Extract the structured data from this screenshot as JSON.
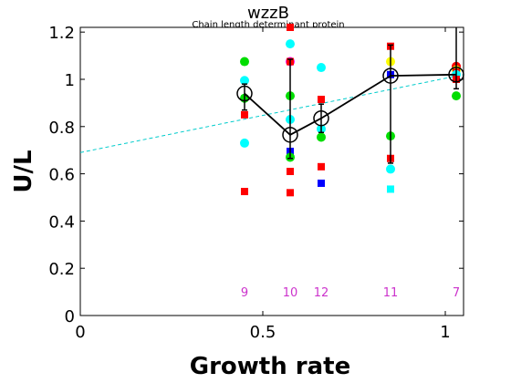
{
  "chart_data": {
    "type": "scatter",
    "title": "wzzB",
    "subtitle": "Chain length determinant protein",
    "xlabel": "Growth rate",
    "ylabel": "U/L",
    "xlim": [
      0,
      1.05
    ],
    "ylim": [
      0,
      1.22
    ],
    "xticks": [
      0,
      0.5,
      1
    ],
    "xtick_labels": [
      "0",
      "0.5",
      "1"
    ],
    "yticks": [
      0,
      0.2,
      0.4,
      0.6,
      0.8,
      1.0,
      1.2
    ],
    "ytick_labels": [
      "0",
      "0.2",
      "0.4",
      "0.6",
      "0.8",
      "1",
      "1.2"
    ],
    "grid": false,
    "colors": {
      "red": "#ff0000",
      "green": "#00dd00",
      "cyan": "#00ffff",
      "blue": "#0000ff",
      "magenta": "#ff00ff",
      "yellow": "#ffff00",
      "black": "#000000",
      "count_label": "#cc33cc",
      "fit_line": "#00cccc"
    },
    "scatter_points": [
      {
        "x": 0.45,
        "y": 1.075,
        "color": "green",
        "marker": "circle"
      },
      {
        "x": 0.45,
        "y": 0.995,
        "color": "cyan",
        "marker": "circle"
      },
      {
        "x": 0.45,
        "y": 0.92,
        "color": "green",
        "marker": "circle"
      },
      {
        "x": 0.45,
        "y": 0.85,
        "color": "red",
        "marker": "square"
      },
      {
        "x": 0.45,
        "y": 0.73,
        "color": "cyan",
        "marker": "circle"
      },
      {
        "x": 0.45,
        "y": 0.525,
        "color": "red",
        "marker": "square"
      },
      {
        "x": 0.575,
        "y": 1.22,
        "color": "red",
        "marker": "square"
      },
      {
        "x": 0.575,
        "y": 1.15,
        "color": "cyan",
        "marker": "circle"
      },
      {
        "x": 0.575,
        "y": 1.075,
        "color": "magenta",
        "marker": "circle"
      },
      {
        "x": 0.575,
        "y": 1.075,
        "color": "red",
        "marker": "square"
      },
      {
        "x": 0.575,
        "y": 0.93,
        "color": "green",
        "marker": "circle"
      },
      {
        "x": 0.575,
        "y": 0.83,
        "color": "cyan",
        "marker": "circle"
      },
      {
        "x": 0.575,
        "y": 0.695,
        "color": "blue",
        "marker": "square"
      },
      {
        "x": 0.575,
        "y": 0.67,
        "color": "green",
        "marker": "circle"
      },
      {
        "x": 0.575,
        "y": 0.61,
        "color": "red",
        "marker": "square"
      },
      {
        "x": 0.575,
        "y": 0.52,
        "color": "red",
        "marker": "square"
      },
      {
        "x": 0.66,
        "y": 1.05,
        "color": "cyan",
        "marker": "circle"
      },
      {
        "x": 0.66,
        "y": 0.915,
        "color": "red",
        "marker": "square"
      },
      {
        "x": 0.66,
        "y": 0.79,
        "color": "cyan",
        "marker": "circle"
      },
      {
        "x": 0.66,
        "y": 0.755,
        "color": "green",
        "marker": "circle"
      },
      {
        "x": 0.66,
        "y": 0.63,
        "color": "red",
        "marker": "square"
      },
      {
        "x": 0.66,
        "y": 0.56,
        "color": "blue",
        "marker": "square"
      },
      {
        "x": 0.85,
        "y": 1.14,
        "color": "red",
        "marker": "square"
      },
      {
        "x": 0.85,
        "y": 1.075,
        "color": "yellow",
        "marker": "circle"
      },
      {
        "x": 0.85,
        "y": 1.02,
        "color": "blue",
        "marker": "square"
      },
      {
        "x": 0.85,
        "y": 0.76,
        "color": "green",
        "marker": "circle"
      },
      {
        "x": 0.85,
        "y": 0.665,
        "color": "red",
        "marker": "square"
      },
      {
        "x": 0.85,
        "y": 0.62,
        "color": "cyan",
        "marker": "circle"
      },
      {
        "x": 0.85,
        "y": 0.535,
        "color": "cyan",
        "marker": "square"
      },
      {
        "x": 1.03,
        "y": 1.055,
        "color": "red",
        "marker": "circle"
      },
      {
        "x": 1.03,
        "y": 1.04,
        "color": "yellow",
        "marker": "circle"
      },
      {
        "x": 1.03,
        "y": 1.03,
        "color": "red",
        "marker": "square"
      },
      {
        "x": 1.03,
        "y": 1.02,
        "color": "cyan",
        "marker": "circle"
      },
      {
        "x": 1.03,
        "y": 1.0,
        "color": "red",
        "marker": "square"
      },
      {
        "x": 1.03,
        "y": 0.93,
        "color": "green",
        "marker": "circle"
      }
    ],
    "mean_series": {
      "x": [
        0.45,
        0.575,
        0.66,
        0.85,
        1.03
      ],
      "y": [
        0.94,
        0.765,
        0.835,
        1.015,
        1.02
      ],
      "err_low": [
        0.07,
        0.1,
        0.06,
        0.37,
        0.06
      ],
      "err_high": [
        0.04,
        0.32,
        0.06,
        0.13,
        0.3
      ]
    },
    "fit_line": {
      "x": [
        0,
        1.05
      ],
      "y": [
        0.69,
        1.02
      ]
    },
    "counts": [
      {
        "x": 0.45,
        "label": "9"
      },
      {
        "x": 0.575,
        "label": "10"
      },
      {
        "x": 0.66,
        "label": "12"
      },
      {
        "x": 0.85,
        "label": "11"
      },
      {
        "x": 1.03,
        "label": "7"
      }
    ],
    "count_label_y": 0.1
  }
}
